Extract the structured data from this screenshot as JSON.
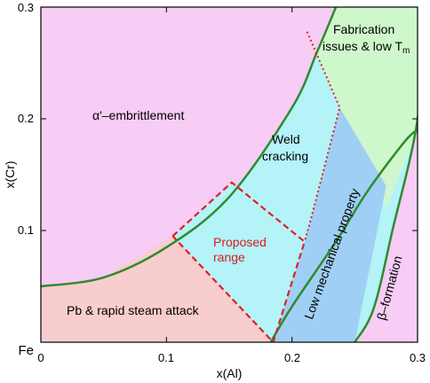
{
  "chart_data": {
    "type": "area",
    "title": "",
    "xlabel": "x(Al)",
    "ylabel": "x(Cr)",
    "origin_label": "Fe",
    "xlim": [
      0,
      0.3
    ],
    "ylim": [
      0,
      0.3
    ],
    "x_ticks": [
      0,
      0.1,
      0.2,
      0.3
    ],
    "x_tick_labels": [
      "0",
      "0.1",
      "0.2",
      "0.3"
    ],
    "y_ticks": [
      0.1,
      0.2,
      0.3
    ],
    "y_tick_labels": [
      "0.1",
      "0.2",
      "0.3"
    ],
    "grid": false,
    "colors": {
      "alpha_region": "#f7ccf5",
      "pb_region": "#f8cdcd",
      "weld_region": "#b4f3f7",
      "lowmech_region": "#9fcff5",
      "fabrication_region": "#cff7cc",
      "beta_region": "#f7ccf5",
      "boundary_line": "#2f8a2f",
      "proposed_line": "#e02020",
      "weld_line": "#e02020"
    },
    "boundaries": {
      "embrittlement_curve": [
        [
          0,
          0.05
        ],
        [
          0.05,
          0.058
        ],
        [
          0.1,
          0.085
        ],
        [
          0.15,
          0.13
        ],
        [
          0.2,
          0.21
        ],
        [
          0.22,
          0.26
        ],
        [
          0.235,
          0.3
        ]
      ],
      "low_mech_lower_curve": [
        [
          0.183,
          0
        ],
        [
          0.2,
          0.032
        ],
        [
          0.235,
          0.09
        ],
        [
          0.26,
          0.135
        ],
        [
          0.29,
          0.18
        ],
        [
          0.3,
          0.19
        ]
      ],
      "beta_curve": [
        [
          0.25,
          0
        ],
        [
          0.265,
          0.03
        ],
        [
          0.28,
          0.1
        ],
        [
          0.3,
          0.2
        ],
        [
          0.305,
          0.3
        ]
      ]
    },
    "proposed_range": [
      [
        0.105,
        0.095
      ],
      [
        0.152,
        0.143
      ],
      [
        0.21,
        0.09
      ],
      [
        0.185,
        0
      ],
      [
        0.105,
        0.095
      ]
    ],
    "weld_boundary": [
      [
        0.212,
        0.278
      ],
      [
        0.238,
        0.21
      ],
      [
        0.215,
        0.11
      ],
      [
        0.21,
        0.09
      ]
    ],
    "annotations": {
      "alpha": "α'–embrittlement",
      "fabrication_line1": "Fabrication",
      "fabrication_line2": "issues & low T",
      "fabrication_sub": "m",
      "weld_line1": "Weld",
      "weld_line2": "cracking",
      "proposed_line1": "Proposed",
      "proposed_line2": "range",
      "pb": "Pb & rapid steam attack",
      "low_mech": "Low mechanical property",
      "beta": "β–formation"
    }
  }
}
